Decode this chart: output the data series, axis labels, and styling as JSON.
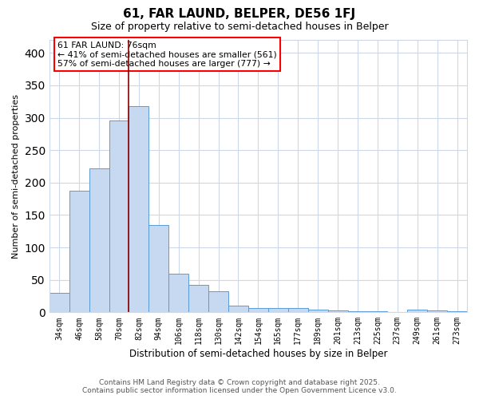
{
  "title": "61, FAR LAUND, BELPER, DE56 1FJ",
  "subtitle": "Size of property relative to semi-detached houses in Belper",
  "xlabel": "Distribution of semi-detached houses by size in Belper",
  "ylabel": "Number of semi-detached properties",
  "annotation_title": "61 FAR LAUND: 76sqm",
  "annotation_line1": "← 41% of semi-detached houses are smaller (561)",
  "annotation_line2": "57% of semi-detached houses are larger (777) →",
  "categories": [
    "34sqm",
    "46sqm",
    "58sqm",
    "70sqm",
    "82sqm",
    "94sqm",
    "106sqm",
    "118sqm",
    "130sqm",
    "142sqm",
    "154sqm",
    "165sqm",
    "177sqm",
    "189sqm",
    "201sqm",
    "213sqm",
    "225sqm",
    "237sqm",
    "249sqm",
    "261sqm",
    "273sqm"
  ],
  "values": [
    30,
    188,
    222,
    296,
    318,
    135,
    60,
    42,
    33,
    10,
    7,
    7,
    7,
    4,
    3,
    2,
    2,
    1,
    4,
    3,
    2
  ],
  "red_line_x": 3.5,
  "bar_color": "#c6d9f0",
  "bar_edge_color": "#5b9bd5",
  "line_color": "#8b0000",
  "background_color": "#ffffff",
  "grid_color": "#cdd8ea",
  "ylim": [
    0,
    420
  ],
  "yticks": [
    0,
    50,
    100,
    150,
    200,
    250,
    300,
    350,
    400
  ],
  "footer_line1": "Contains HM Land Registry data © Crown copyright and database right 2025.",
  "footer_line2": "Contains public sector information licensed under the Open Government Licence v3.0."
}
